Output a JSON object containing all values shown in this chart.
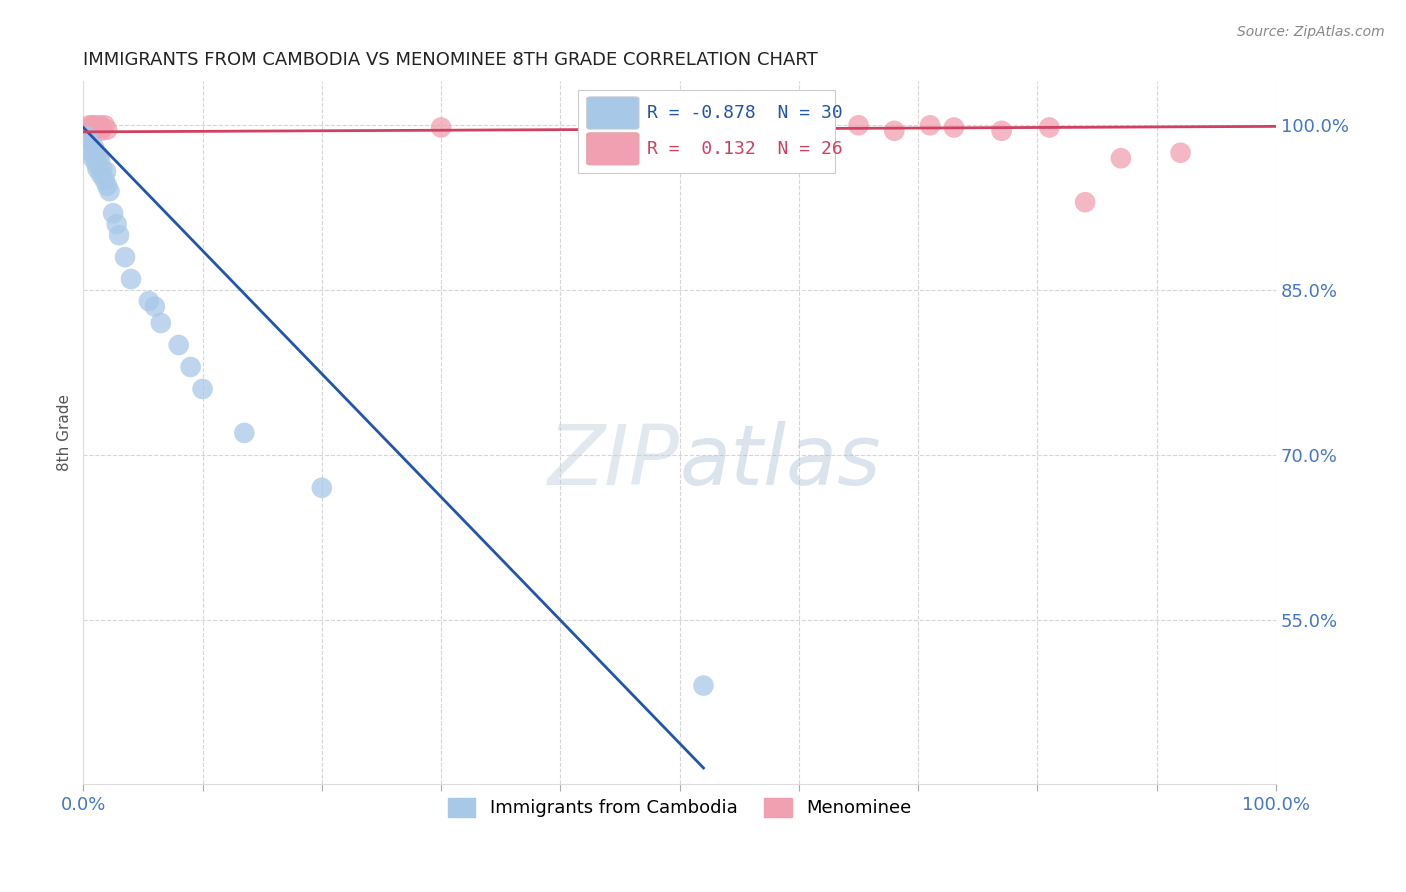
{
  "title": "IMMIGRANTS FROM CAMBODIA VS MENOMINEE 8TH GRADE CORRELATION CHART",
  "source": "Source: ZipAtlas.com",
  "ylabel": "8th Grade",
  "xlim": [
    0,
    1
  ],
  "ylim": [
    0.4,
    1.04
  ],
  "yticks": [
    0.55,
    0.7,
    0.85,
    1.0
  ],
  "ytick_labels": [
    "55.0%",
    "70.0%",
    "85.0%",
    "100.0%"
  ],
  "blue_color": "#a8c8e8",
  "blue_line_color": "#2255aa",
  "pink_color": "#f0a0b0",
  "pink_line_color": "#d04060",
  "R_blue": -0.878,
  "N_blue": 30,
  "R_pink": 0.132,
  "N_pink": 26,
  "blue_x": [
    0.003,
    0.005,
    0.007,
    0.008,
    0.009,
    0.01,
    0.011,
    0.012,
    0.013,
    0.014,
    0.015,
    0.016,
    0.018,
    0.019,
    0.02,
    0.022,
    0.025,
    0.028,
    0.03,
    0.035,
    0.04,
    0.055,
    0.06,
    0.065,
    0.08,
    0.09,
    0.1,
    0.135,
    0.2,
    0.52
  ],
  "blue_y": [
    0.99,
    0.985,
    0.975,
    0.97,
    0.98,
    0.975,
    0.965,
    0.96,
    0.972,
    0.968,
    0.955,
    0.96,
    0.95,
    0.958,
    0.945,
    0.94,
    0.92,
    0.91,
    0.9,
    0.88,
    0.86,
    0.84,
    0.835,
    0.82,
    0.8,
    0.78,
    0.76,
    0.72,
    0.67,
    0.49
  ],
  "pink_x": [
    0.003,
    0.005,
    0.006,
    0.007,
    0.008,
    0.009,
    0.01,
    0.011,
    0.012,
    0.014,
    0.015,
    0.016,
    0.018,
    0.02,
    0.3,
    0.56,
    0.61,
    0.65,
    0.68,
    0.71,
    0.73,
    0.77,
    0.81,
    0.84,
    0.87,
    0.92
  ],
  "pink_y": [
    0.995,
    1.0,
    0.998,
    0.996,
    1.0,
    0.998,
    1.0,
    0.996,
    0.998,
    1.0,
    0.995,
    0.998,
    1.0,
    0.996,
    0.998,
    1.0,
    0.998,
    1.0,
    0.995,
    1.0,
    0.998,
    0.995,
    0.998,
    0.93,
    0.97,
    0.975
  ],
  "watermark_zip": "ZIP",
  "watermark_atlas": "atlas",
  "grid_color": "#cccccc",
  "background_color": "#ffffff",
  "title_color": "#222222",
  "axis_label_color": "#555555",
  "tick_label_color": "#4477cc",
  "source_color": "#888888"
}
